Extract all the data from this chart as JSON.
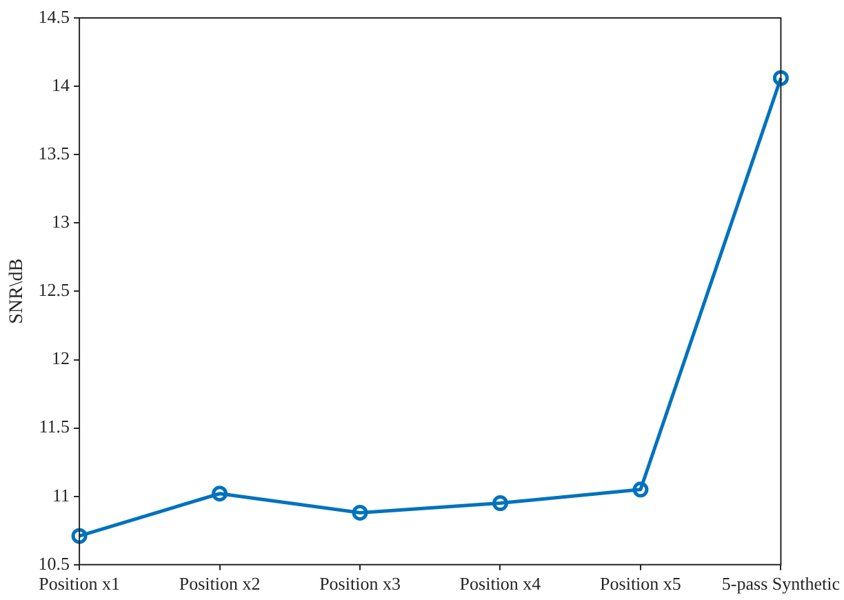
{
  "chart_data": {
    "type": "line",
    "ylabel": "SNR\\dB",
    "categories": [
      "Position x1",
      "Position x2",
      "Position x3",
      "Position x4",
      "Position x5",
      "5-pass Synthetic"
    ],
    "series": [
      {
        "color": "#0072bd",
        "values": [
          10.71,
          11.02,
          10.88,
          10.95,
          11.05,
          14.06
        ]
      }
    ],
    "ylim": [
      10.5,
      14.5
    ],
    "yticks": [
      10.5,
      11,
      11.5,
      12,
      12.5,
      13,
      13.5,
      14,
      14.5
    ],
    "grid": false,
    "legend": false,
    "marker": "circle",
    "line_style": "solid"
  }
}
